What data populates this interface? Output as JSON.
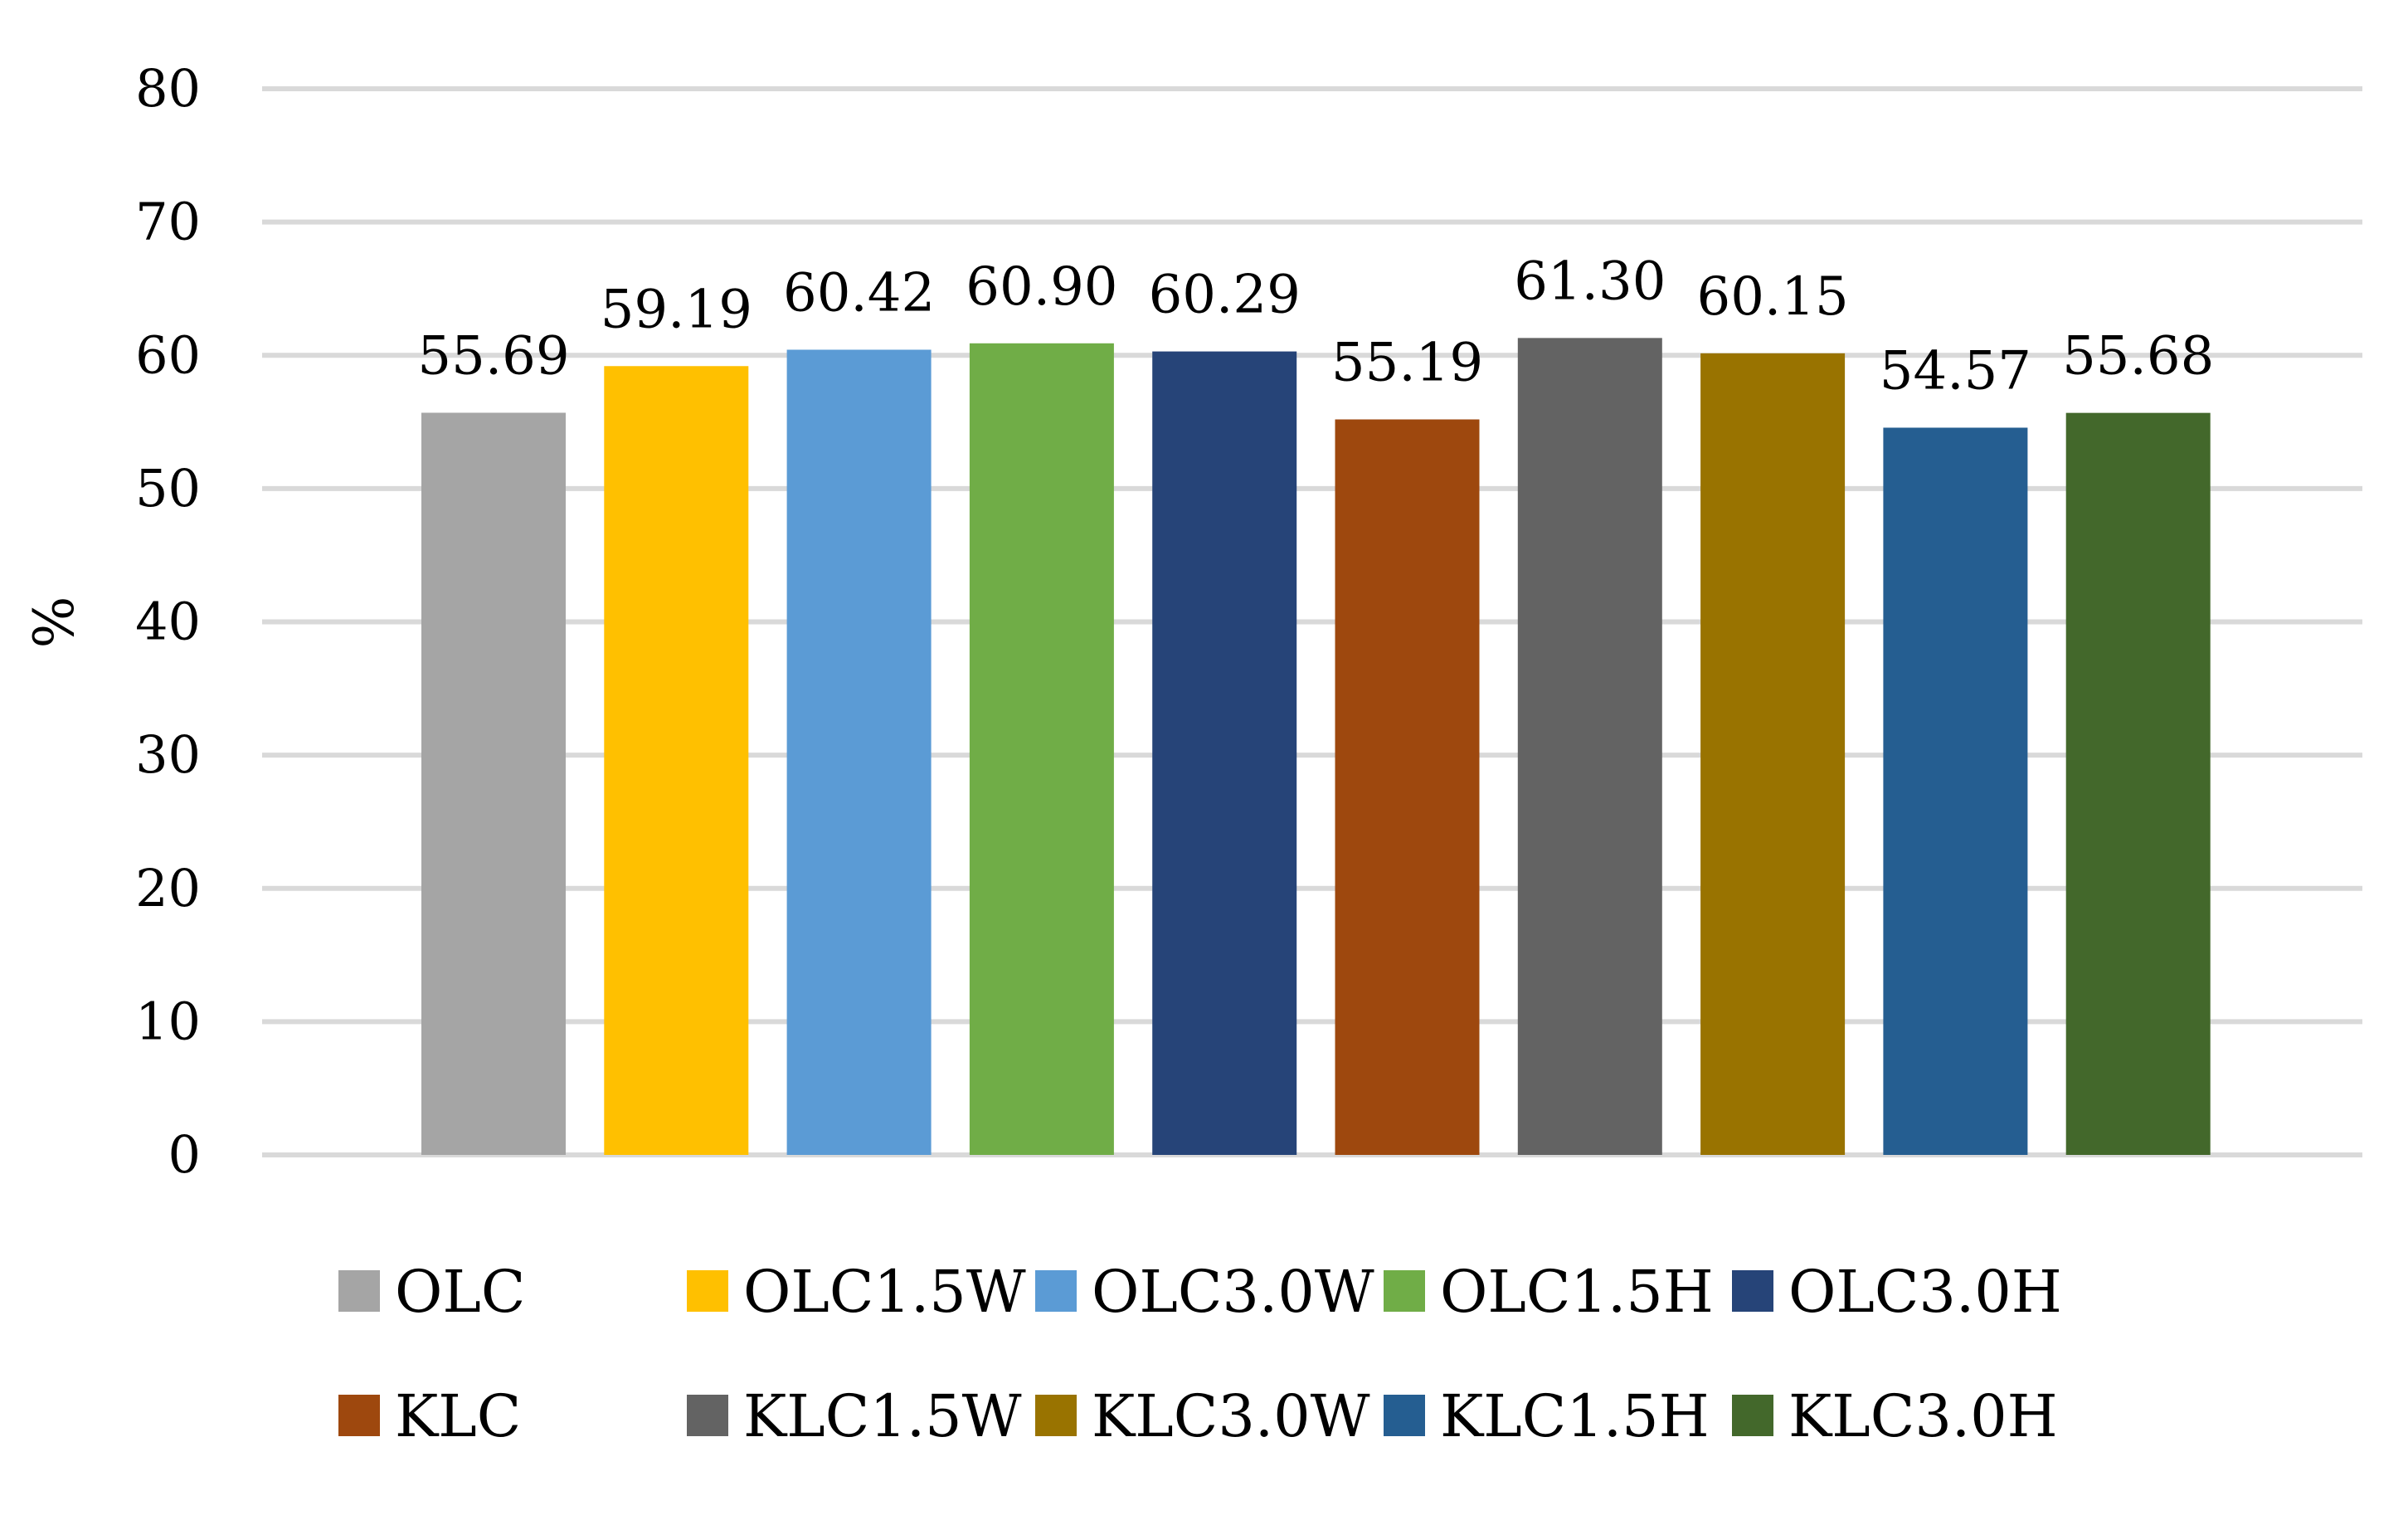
{
  "chart_data": {
    "type": "bar",
    "title": "",
    "xlabel": "",
    "ylabel": "%",
    "ylim": [
      0,
      80
    ],
    "yticks": [
      0,
      10,
      20,
      30,
      40,
      50,
      60,
      70,
      80
    ],
    "grid": true,
    "legend_position": "bottom",
    "categories": [
      "OLC",
      "OLC1.5W",
      "OLC3.0W",
      "OLC1.5H",
      "OLC3.0H",
      "KLC",
      "KLC1.5W",
      "KLC3.0W",
      "KLC1.5H",
      "KLC3.0H"
    ],
    "values": [
      55.69,
      59.19,
      60.42,
      60.9,
      60.29,
      55.19,
      61.3,
      60.15,
      54.57,
      55.68
    ],
    "value_labels": [
      "55.69",
      "59.19",
      "60.42",
      "60.90",
      "60.29",
      "55.19",
      "61.30",
      "60.15",
      "54.57",
      "55.68"
    ],
    "colors": [
      "#a5a5a5",
      "#ffc000",
      "#5b9bd5",
      "#70ad47",
      "#264478",
      "#9e480e",
      "#636363",
      "#997300",
      "#255e91",
      "#43682b"
    ],
    "gridline_color": "#d9d9d9"
  }
}
